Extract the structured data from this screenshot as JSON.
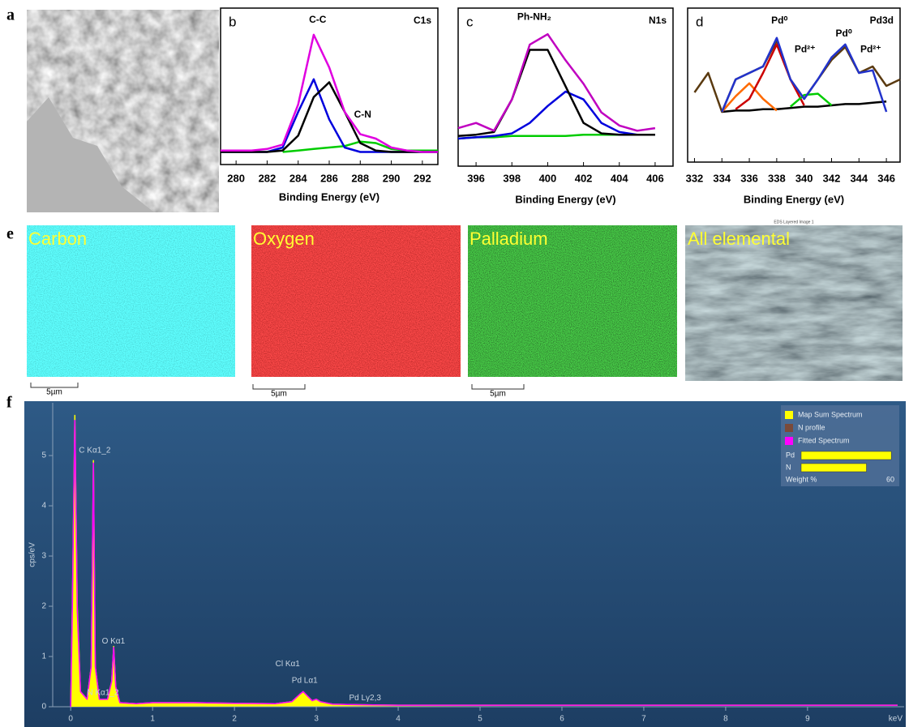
{
  "figure_labels": [
    "a",
    "e",
    "f"
  ],
  "maps": [
    {
      "label": "Carbon",
      "scale_bar": "5µm"
    },
    {
      "label": "Oxygen",
      "scale_bar": "5µm"
    },
    {
      "label": "Palladium",
      "scale_bar": "5µm"
    },
    {
      "label": "All elemental",
      "title": "EDS Layered Image 1"
    }
  ],
  "chart_data": [
    {
      "type": "line",
      "panel": "b",
      "title": "C1s",
      "x_label": "Binding Energy (eV)",
      "x": [
        279,
        280,
        281,
        282,
        283,
        284,
        285,
        286,
        287,
        288,
        289,
        290,
        291,
        292,
        293
      ],
      "xlim": [
        279,
        293
      ],
      "xticks": [
        280,
        282,
        284,
        286,
        288,
        290,
        292
      ],
      "ylim": [
        0,
        1
      ],
      "series": [
        {
          "color": "#00cc00",
          "values": [
            null,
            null,
            null,
            null,
            0.03,
            0.04,
            0.05,
            0.06,
            0.07,
            0.1,
            0.09,
            0.05,
            0.04,
            0.04,
            0.04
          ]
        },
        {
          "color": "#0000dd",
          "values": [
            0.03,
            0.03,
            0.03,
            0.03,
            0.06,
            0.3,
            0.52,
            0.25,
            0.06,
            0.03,
            0.03,
            0.03,
            0.03,
            0.03,
            0.03
          ]
        },
        {
          "color": "#000000",
          "values": [
            0.03,
            0.03,
            0.03,
            0.03,
            0.04,
            0.14,
            0.4,
            0.5,
            0.3,
            0.09,
            0.04,
            0.03,
            0.03,
            0.03,
            0.03
          ]
        },
        {
          "color": "#e000e0",
          "values": [
            0.04,
            0.04,
            0.04,
            0.05,
            0.08,
            0.35,
            0.82,
            0.6,
            0.3,
            0.15,
            0.12,
            0.06,
            0.04,
            0.03,
            0.03
          ]
        }
      ],
      "annotations": [
        {
          "text": "C-C",
          "x": 284.7,
          "y": 0.92
        },
        {
          "text": "C-N",
          "x": 287.6,
          "y": 0.28
        }
      ]
    },
    {
      "type": "line",
      "panel": "c",
      "title": "N1s",
      "x_label": "Binding Energy (eV)",
      "x": [
        395,
        396,
        397,
        398,
        399,
        400,
        401,
        402,
        403,
        404,
        405,
        406
      ],
      "xlim": [
        395,
        407
      ],
      "xticks": [
        396,
        398,
        400,
        402,
        404,
        406
      ],
      "ylim": [
        0,
        1
      ],
      "series": [
        {
          "color": "#00cc00",
          "values": [
            0,
            0.01,
            0.01,
            0.02,
            0.02,
            0.02,
            0.02,
            0.03,
            0.03,
            0.03,
            0.03,
            0.03
          ]
        },
        {
          "color": "#0000dd",
          "values": [
            0,
            0.01,
            0.02,
            0.04,
            0.12,
            0.25,
            0.36,
            0.3,
            0.12,
            0.05,
            0.03,
            0.03
          ]
        },
        {
          "color": "#000000",
          "values": [
            0.02,
            0.03,
            0.05,
            0.3,
            0.68,
            0.68,
            0.4,
            0.12,
            0.04,
            0.03,
            0.03,
            0.03
          ]
        },
        {
          "color": "#c000c0",
          "values": [
            0.08,
            0.12,
            0.06,
            0.3,
            0.72,
            0.8,
            0.6,
            0.42,
            0.2,
            0.1,
            0.06,
            0.08
          ]
        }
      ],
      "annotations": [
        {
          "text": "Ph-NH₂",
          "x": 398.3,
          "y": 0.93
        }
      ]
    },
    {
      "type": "line",
      "panel": "d",
      "title": "Pd3d",
      "x_label": "Binding Energy (eV)",
      "x": [
        332,
        333,
        334,
        335,
        336,
        337,
        338,
        339,
        340,
        341,
        342,
        343,
        344,
        345,
        346,
        347
      ],
      "xlim": [
        331.5,
        347
      ],
      "xticks": [
        332,
        334,
        336,
        338,
        340,
        342,
        344,
        346
      ],
      "ylim": [
        0,
        1
      ],
      "series": [
        {
          "color": "#5a3a10",
          "values": [
            0.35,
            0.5,
            0.2,
            0.45,
            0.5,
            0.55,
            0.75,
            0.45,
            0.3,
            0.45,
            0.6,
            0.7,
            0.5,
            0.55,
            0.4,
            0.45
          ]
        },
        {
          "color": "#000000",
          "values": [
            null,
            null,
            0.2,
            0.21,
            0.21,
            0.22,
            0.22,
            0.23,
            0.24,
            0.24,
            0.25,
            0.26,
            0.26,
            0.27,
            0.28,
            null
          ]
        },
        {
          "color": "#ff6a00",
          "values": [
            null,
            null,
            0.2,
            0.32,
            0.42,
            0.3,
            0.21,
            null,
            null,
            null,
            null,
            null,
            null,
            null,
            null,
            null
          ]
        },
        {
          "color": "#cc0000",
          "values": [
            null,
            null,
            null,
            0.22,
            0.3,
            0.5,
            0.72,
            0.45,
            0.25,
            null,
            null,
            null,
            null,
            null,
            null,
            null
          ]
        },
        {
          "color": "#00cc00",
          "values": [
            null,
            null,
            null,
            null,
            null,
            null,
            null,
            0.24,
            0.33,
            0.34,
            0.25,
            null,
            null,
            null,
            null,
            null
          ]
        },
        {
          "color": "#2233cc",
          "values": [
            null,
            null,
            0.2,
            0.45,
            0.5,
            0.55,
            0.77,
            0.45,
            0.3,
            0.45,
            0.62,
            0.72,
            0.5,
            0.52,
            0.2,
            null
          ]
        }
      ],
      "annotations": [
        {
          "text": "Pd⁰",
          "x": 337.6,
          "y": 0.9
        },
        {
          "text": "Pd²⁺",
          "x": 339.3,
          "y": 0.68
        },
        {
          "text": "Pd⁰",
          "x": 342.3,
          "y": 0.8
        },
        {
          "text": "Pd²⁺",
          "x": 344.1,
          "y": 0.68
        }
      ]
    },
    {
      "type": "line",
      "x_label": "keV",
      "y_label": "cps/eV",
      "x": [
        0,
        0.02,
        0.05,
        0.08,
        0.12,
        0.2,
        0.25,
        0.277,
        0.3,
        0.35,
        0.45,
        0.5,
        0.525,
        0.55,
        0.6,
        0.8,
        1.0,
        1.5,
        2.0,
        2.5,
        2.7,
        2.8,
        2.84,
        2.9,
        2.95,
        3.0,
        3.05,
        3.2,
        3.5,
        4,
        5,
        6,
        7,
        8,
        9,
        10.1
      ],
      "xlim": [
        -0.22,
        10.18
      ],
      "xticks": [
        0,
        1,
        2,
        3,
        4,
        5,
        6,
        7,
        8,
        9
      ],
      "ylim": [
        0,
        6.05
      ],
      "yticks": [
        0,
        1,
        2,
        3,
        4,
        5
      ],
      "series": [
        {
          "name": "Map Sum Spectrum",
          "color": "#ffff00",
          "fill": true,
          "values": [
            0,
            2,
            5.8,
            2,
            0.3,
            0.15,
            0.8,
            4.9,
            0.8,
            0.15,
            0.15,
            0.5,
            1.2,
            0.4,
            0.08,
            0.06,
            0.08,
            0.08,
            0.07,
            0.06,
            0.1,
            0.25,
            0.3,
            0.2,
            0.12,
            0.15,
            0.1,
            0.05,
            0.04,
            0.03,
            0.03,
            0.03,
            0.03,
            0.03,
            0.03,
            0.03
          ]
        },
        {
          "name": "Fitted Spectrum",
          "color": "#ff00ff",
          "values": [
            0,
            1.9,
            5.7,
            1.9,
            0.3,
            0.15,
            0.8,
            4.85,
            0.8,
            0.15,
            0.15,
            0.5,
            1.18,
            0.4,
            0.08,
            0.06,
            0.08,
            0.08,
            0.07,
            0.06,
            0.1,
            0.25,
            0.3,
            0.2,
            0.12,
            0.15,
            0.1,
            0.05,
            0.04,
            0.03,
            0.03,
            0.03,
            0.03,
            0.03,
            0.03,
            0.03
          ]
        }
      ],
      "extra_legend": [
        {
          "name": "N profile",
          "color": "#7a4a3a"
        }
      ],
      "annotations": [
        {
          "text": "C Kα1_2",
          "x": 0.1,
          "y": 5.1
        },
        {
          "text": "O Kα1",
          "x": 0.38,
          "y": 1.3
        },
        {
          "text": "N Kα1_2",
          "x": 0.2,
          "y": 0.28
        },
        {
          "text": "Cl Kα1",
          "x": 2.5,
          "y": 0.85
        },
        {
          "text": "Pd Lα1",
          "x": 2.7,
          "y": 0.52
        },
        {
          "text": "Pd Lγ2,3",
          "x": 3.4,
          "y": 0.17
        }
      ],
      "inset": {
        "type": "bar",
        "categories": [
          "Pd",
          "N"
        ],
        "values": [
          58,
          42
        ],
        "color": "#ffff00",
        "xlim": [
          0,
          60
        ],
        "xticks": [
          60
        ],
        "x_label": "Weight %"
      }
    }
  ]
}
